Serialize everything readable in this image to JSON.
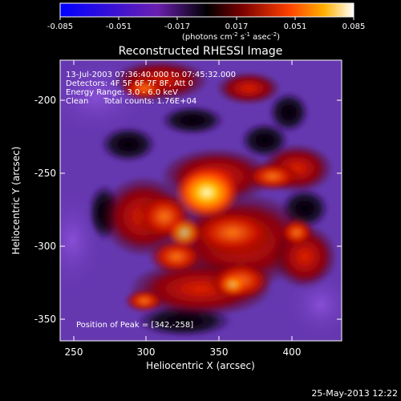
{
  "colorbar": {
    "ticks": [
      "-0.085",
      "-0.051",
      "-0.017",
      "0.017",
      "0.051",
      "0.085"
    ],
    "units_main": "(photons cm",
    "units_sup1": "-2",
    "units_mid1": " s",
    "units_sup2": "-1",
    "units_mid2": " asec",
    "units_sup3": "-2",
    "units_end": ")"
  },
  "title": "Reconstructed RHESSI Image",
  "info": {
    "line1": "13-Jul-2003 07:36:40.000 to 07:45:32.000",
    "line2": "Detectors: 4F 5F 6F 7F 8F, Att 0",
    "line3": "Energy Range: 3.0 - 6.0 keV",
    "line4_a": "Clean",
    "line4_b": "Total counts: 1.76E+04"
  },
  "peak_label": "Position of Peak = [342,-258]",
  "axes": {
    "xlabel": "Heliocentric X (arcsec)",
    "ylabel": "Heliocentric Y (arcsec)",
    "x_ticks": [
      "250",
      "300",
      "350",
      "400"
    ],
    "y_ticks": [
      "-200",
      "-250",
      "-300",
      "-350"
    ]
  },
  "footer_timestamp": "25-May-2013 12:22"
}
